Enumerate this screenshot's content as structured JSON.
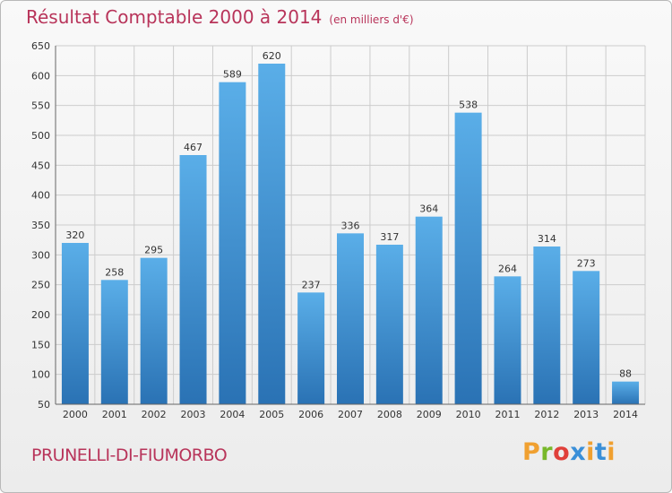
{
  "header": {
    "title": "Résultat Comptable 2000 à 2014",
    "subtitle": "(en milliers d'€)"
  },
  "footer": {
    "place": "PRUNELLI-DI-FIUMORBO",
    "brand": "Proxiti"
  },
  "colors": {
    "title": "#b8345a",
    "bar_top": "#5aaee8",
    "bar_bottom": "#2a72b4",
    "grid": "#cccccc"
  },
  "chart_data": {
    "type": "bar",
    "title": "Résultat Comptable 2000 à 2014",
    "subtitle": "(en milliers d'€)",
    "xlabel": "",
    "ylabel": "",
    "categories": [
      "2000",
      "2001",
      "2002",
      "2003",
      "2004",
      "2005",
      "2006",
      "2007",
      "2008",
      "2009",
      "2010",
      "2011",
      "2012",
      "2013",
      "2014"
    ],
    "values": [
      320,
      258,
      295,
      467,
      589,
      620,
      237,
      336,
      317,
      364,
      538,
      264,
      314,
      273,
      88
    ],
    "ylim": [
      50,
      650
    ],
    "yticks": [
      50,
      100,
      150,
      200,
      250,
      300,
      350,
      400,
      450,
      500,
      550,
      600,
      650
    ],
    "grid": true,
    "data_labels": true
  }
}
